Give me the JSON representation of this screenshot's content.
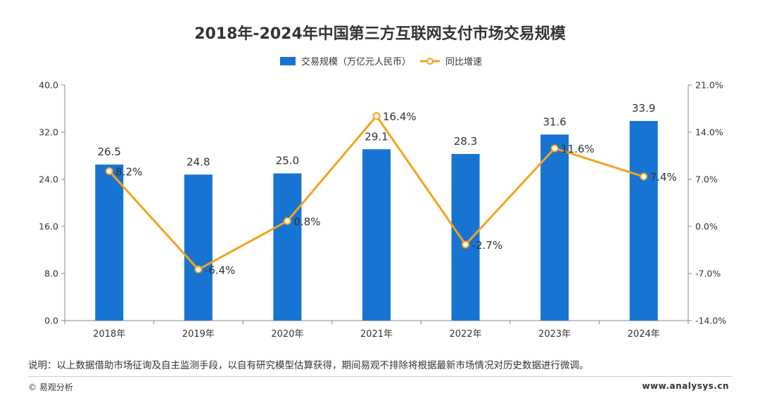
{
  "chart_data": {
    "type": "bar+line",
    "title": "2018年-2024年中国第三方互联网支付市场交易规模",
    "categories": [
      "2018年",
      "2019年",
      "2020年",
      "2021年",
      "2022年",
      "2023年",
      "2024年"
    ],
    "series": [
      {
        "name": "交易规模（万亿元人民币）",
        "type": "bar",
        "axis": "left",
        "values": [
          26.5,
          24.8,
          25.0,
          29.1,
          28.3,
          31.6,
          33.9
        ],
        "labels": [
          "26.5",
          "24.8",
          "25.0",
          "29.1",
          "28.3",
          "31.6",
          "33.9"
        ]
      },
      {
        "name": "同比增速",
        "type": "line",
        "axis": "right",
        "values": [
          8.2,
          -6.4,
          0.8,
          16.4,
          -2.7,
          11.6,
          7.4
        ],
        "labels": [
          "8.2%",
          "-6.4%",
          "0.8%",
          "16.4%",
          "-2.7%",
          "11.6%",
          "7.4%"
        ]
      }
    ],
    "left_axis": {
      "range": [
        0,
        40
      ],
      "ticks": [
        0,
        8,
        16,
        24,
        32,
        40
      ],
      "tick_labels": [
        "0.0",
        "8.0",
        "16.0",
        "24.0",
        "32.0",
        "40.0"
      ]
    },
    "right_axis": {
      "range": [
        -14,
        21
      ],
      "ticks": [
        -14,
        -7,
        0,
        7,
        14,
        21
      ],
      "tick_labels": [
        "-14.0%",
        "-7.0%",
        "0.0%",
        "7.0%",
        "14.0%",
        "21.0%"
      ]
    },
    "legend_position": "top-center",
    "grid": false,
    "colors": {
      "bar": "#1874d2",
      "line": "#f5a21b",
      "marker_fill": "#ffffff",
      "axis": "#888888",
      "text": "#333333"
    }
  },
  "footer": {
    "note": "说明：以上数据借助市场征询及自主监测手段，以自有研究模型估算获得，期间易观不排除将根据最新市场情况对历史数据进行微调。",
    "copyright": "© 易观分析",
    "website": "www.analysys.cn"
  }
}
